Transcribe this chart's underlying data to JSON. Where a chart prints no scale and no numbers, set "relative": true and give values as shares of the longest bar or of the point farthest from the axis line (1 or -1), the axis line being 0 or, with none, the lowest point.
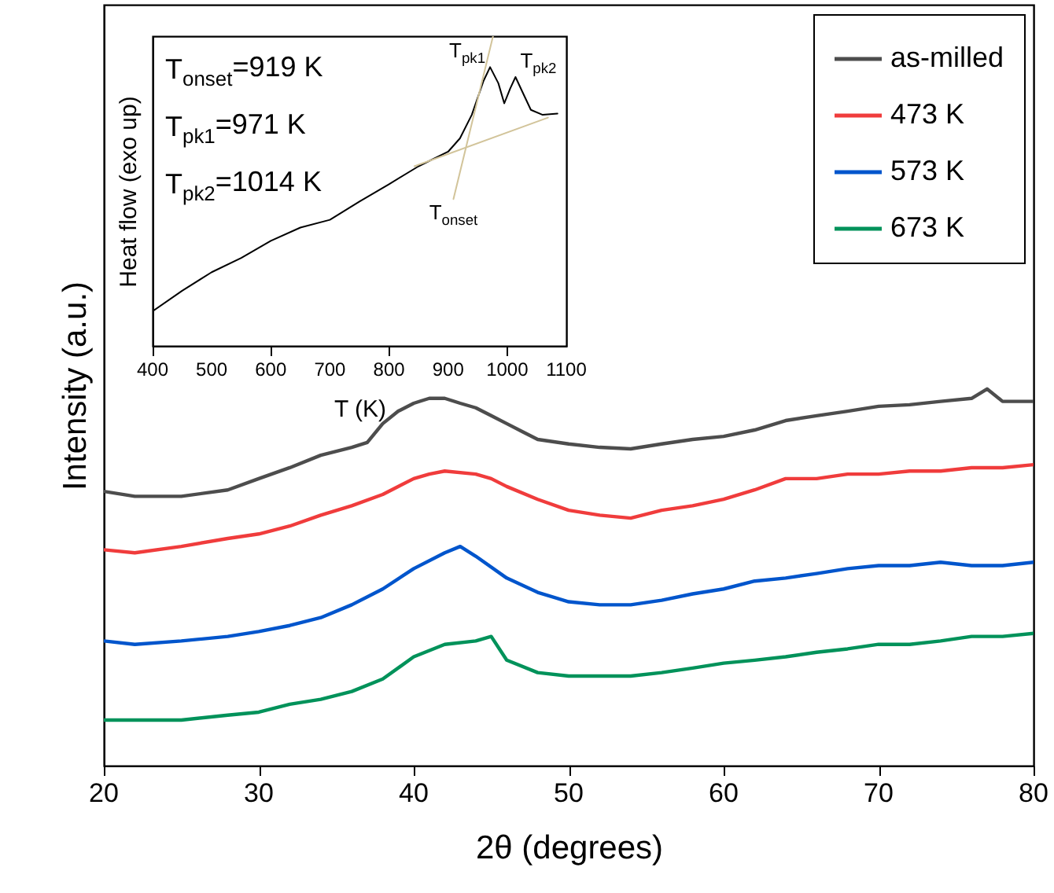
{
  "chart_data": [
    {
      "type": "line",
      "xlabel": "2θ (degrees)",
      "ylabel": "Intensity (a.u.)",
      "relative": true,
      "xlim": [
        20,
        80
      ],
      "xticks": [
        20,
        30,
        40,
        50,
        60,
        70,
        80
      ],
      "tick_labels": "x",
      "legend": "top right",
      "series": [
        {
          "name": "as-milled",
          "color": "#4d4d4d",
          "x": [
            20,
            22,
            25,
            28,
            30,
            32,
            34,
            36,
            37,
            38,
            39,
            40,
            41,
            42,
            43,
            44,
            45,
            46,
            47,
            48,
            50,
            52,
            54,
            56,
            58,
            60,
            62,
            64,
            66,
            68,
            70,
            72,
            74,
            76,
            77,
            78,
            80
          ],
          "values": [
            0.728,
            0.715,
            0.715,
            0.732,
            0.762,
            0.791,
            0.824,
            0.845,
            0.858,
            0.908,
            0.941,
            0.962,
            0.975,
            0.975,
            0.962,
            0.95,
            0.929,
            0.908,
            0.887,
            0.866,
            0.854,
            0.845,
            0.841,
            0.854,
            0.866,
            0.874,
            0.891,
            0.916,
            0.929,
            0.941,
            0.954,
            0.958,
            0.967,
            0.975,
            1,
            0.967,
            0.967
          ]
        },
        {
          "name": "473 K",
          "color": "#f03c3c",
          "x": [
            20,
            22,
            25,
            28,
            30,
            32,
            34,
            36,
            38,
            40,
            41,
            42,
            44,
            45,
            46,
            48,
            50,
            52,
            54,
            56,
            58,
            60,
            62,
            64,
            66,
            68,
            70,
            72,
            74,
            76,
            78,
            80
          ],
          "values": [
            0.573,
            0.565,
            0.582,
            0.603,
            0.615,
            0.636,
            0.665,
            0.69,
            0.72,
            0.762,
            0.774,
            0.782,
            0.774,
            0.762,
            0.741,
            0.707,
            0.678,
            0.665,
            0.657,
            0.678,
            0.69,
            0.707,
            0.732,
            0.762,
            0.762,
            0.774,
            0.774,
            0.782,
            0.782,
            0.791,
            0.791,
            0.799
          ]
        },
        {
          "name": "573 K",
          "color": "#0055cc",
          "x": [
            20,
            22,
            25,
            28,
            30,
            32,
            34,
            36,
            38,
            40,
            42,
            43,
            44,
            46,
            48,
            50,
            52,
            54,
            56,
            58,
            60,
            62,
            64,
            66,
            68,
            70,
            72,
            74,
            76,
            78,
            80
          ],
          "values": [
            0.331,
            0.322,
            0.331,
            0.343,
            0.356,
            0.372,
            0.393,
            0.427,
            0.469,
            0.523,
            0.565,
            0.582,
            0.556,
            0.498,
            0.46,
            0.435,
            0.427,
            0.427,
            0.439,
            0.456,
            0.469,
            0.49,
            0.498,
            0.51,
            0.523,
            0.531,
            0.531,
            0.54,
            0.531,
            0.531,
            0.54
          ]
        },
        {
          "name": "673 K",
          "color": "#00925a",
          "x": [
            20,
            22,
            25,
            28,
            30,
            32,
            34,
            36,
            38,
            40,
            42,
            44,
            45,
            46,
            48,
            50,
            52,
            54,
            56,
            58,
            60,
            62,
            64,
            66,
            68,
            70,
            72,
            74,
            76,
            78,
            80
          ],
          "values": [
            0.121,
            0.121,
            0.121,
            0.134,
            0.142,
            0.163,
            0.176,
            0.197,
            0.23,
            0.289,
            0.322,
            0.331,
            0.343,
            0.28,
            0.247,
            0.238,
            0.238,
            0.238,
            0.247,
            0.259,
            0.272,
            0.28,
            0.289,
            0.301,
            0.31,
            0.322,
            0.322,
            0.331,
            0.343,
            0.343,
            0.351
          ]
        }
      ]
    },
    {
      "type": "line",
      "xlabel": "T (K)",
      "ylabel": "Heat flow (exo up)",
      "relative": true,
      "xlim": [
        400,
        1100
      ],
      "xticks": [
        400,
        500,
        600,
        700,
        800,
        900,
        1000,
        1100
      ],
      "tick_labels": "x",
      "annotations": [
        "T$_{onset}$=919 K",
        "T$_{pk1}$=971 K",
        "T$_{pk2}$=1014 K",
        {
          "text": "T$_{pk1}$",
          "x": 971,
          "y": 0.9
        },
        {
          "text": "T$_{pk2}$",
          "x": 1014,
          "y": 0.868
        },
        {
          "text": "T$_{onset}$",
          "x": 909,
          "y": 0.474
        }
      ],
      "series": [
        {
          "color": "#000000",
          "x": [
            400,
            450,
            500,
            550,
            600,
            650,
            700,
            750,
            800,
            850,
            900,
            920,
            940,
            960,
            971,
            985,
            995,
            1005,
            1014,
            1025,
            1040,
            1060,
            1085
          ],
          "values": [
            0.112,
            0.178,
            0.238,
            0.284,
            0.339,
            0.382,
            0.407,
            0.466,
            0.522,
            0.58,
            0.627,
            0.67,
            0.746,
            0.856,
            0.9,
            0.848,
            0.783,
            0.831,
            0.868,
            0.823,
            0.762,
            0.746,
            0.75
          ]
        },
        {
          "color": "#d2c49a",
          "x": [
            843,
            1069
          ],
          "values": [
            0.58,
            0.737
          ]
        },
        {
          "color": "#d2c49a",
          "x": [
            909,
            976
          ],
          "values": [
            0.474,
            1
          ]
        }
      ]
    }
  ]
}
